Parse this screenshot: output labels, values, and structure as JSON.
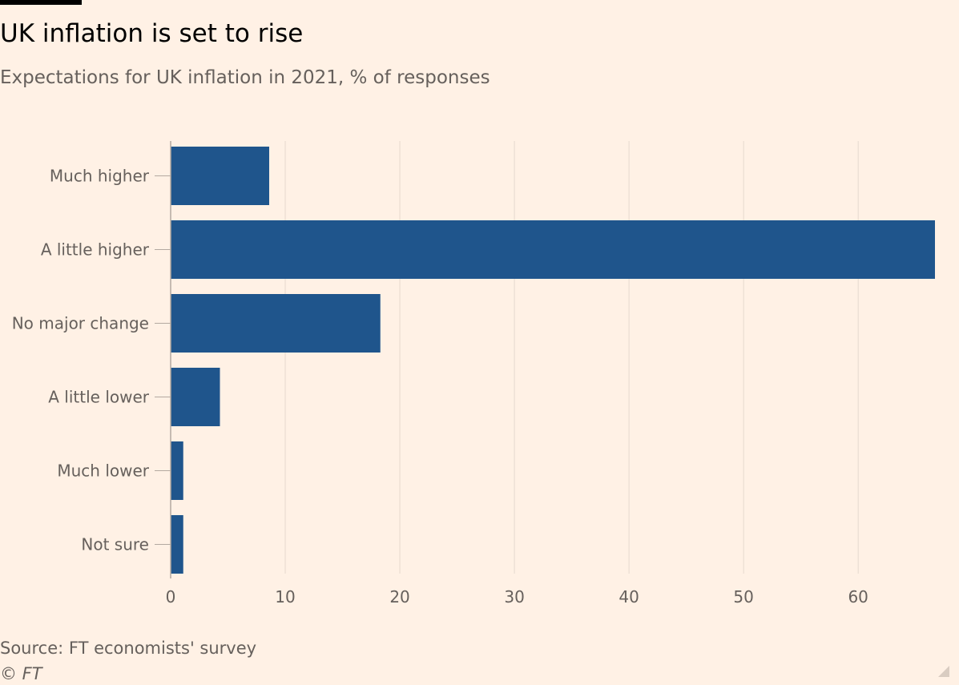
{
  "header": {
    "title": "UK inflation is set to rise",
    "subtitle": "Expectations for UK inflation in 2021, % of responses"
  },
  "footer": {
    "source": "Source: FT economists' survey",
    "copyright": "© FT"
  },
  "colors": {
    "background": "#FFF1E5",
    "bar": "#1F558C",
    "grid": "#E6D9CE",
    "axis_text": "#66605C"
  },
  "chart_data": {
    "type": "bar",
    "orientation": "horizontal",
    "title": "UK inflation is set to rise",
    "subtitle": "Expectations for UK inflation in 2021, % of responses",
    "categories": [
      "Much higher",
      "A little higher",
      "No major change",
      "A little lower",
      "Much lower",
      "Not sure"
    ],
    "values": [
      8.6,
      66.7,
      18.3,
      4.3,
      1.1,
      1.1
    ],
    "x_ticks": [
      0,
      10,
      20,
      30,
      40,
      50,
      60
    ],
    "xlim": [
      0,
      66.7
    ],
    "xlabel": "",
    "ylabel": "",
    "grid": true,
    "legend": "none"
  }
}
